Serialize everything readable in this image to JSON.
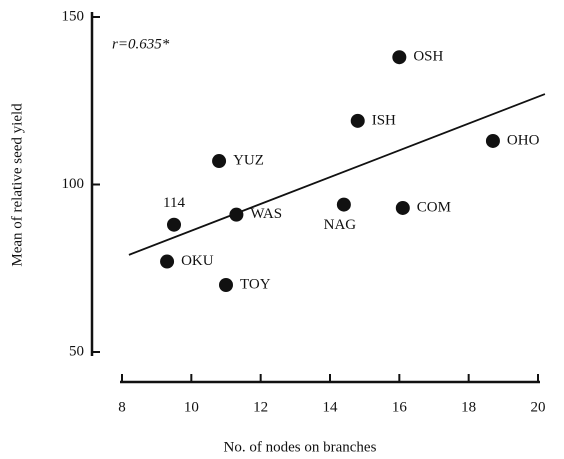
{
  "chart_data": {
    "type": "scatter",
    "annotation": "r=0.635*",
    "xlabel": "No. of nodes on branches",
    "ylabel": "Mean of relative seed yield",
    "labels": [
      "114",
      "OKU",
      "TOY",
      "YUZ",
      "WAS",
      "NAG",
      "ISH",
      "OSH",
      "COM",
      "OHO"
    ],
    "x": [
      9.5,
      9.3,
      11.0,
      10.8,
      11.3,
      14.4,
      14.8,
      16.0,
      16.1,
      18.7
    ],
    "y": [
      88,
      77,
      70,
      107,
      91,
      94,
      119,
      138,
      93,
      113
    ],
    "color": "#111111",
    "regression": {
      "x": [
        8.2,
        20.2
      ],
      "y": [
        79,
        127
      ]
    },
    "xlim": [
      8,
      20
    ],
    "xticks": [
      8,
      10,
      12,
      14,
      16,
      18,
      20
    ],
    "ylim": [
      50,
      150
    ],
    "yticks": [
      50,
      100,
      150
    ]
  }
}
